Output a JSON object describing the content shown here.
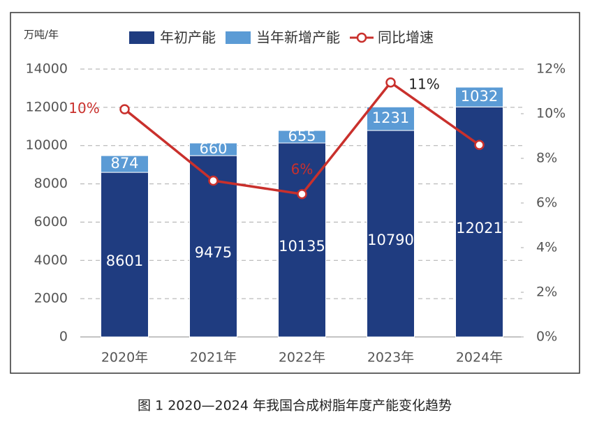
{
  "chart_data": {
    "type": "bar",
    "y_unit": "万吨/年",
    "caption": "图 1  2020—2024 年我国合成树脂年度产能变化趋势",
    "categories": [
      "2020年",
      "2021年",
      "2022年",
      "2023年",
      "2024年"
    ],
    "series": [
      {
        "name": "年初产能",
        "color": "#1f3c80",
        "values": [
          8601,
          9475,
          10135,
          10790,
          12021
        ]
      },
      {
        "name": "当年新增产能",
        "color": "#5b9bd5",
        "values": [
          874,
          660,
          655,
          1231,
          1032
        ]
      },
      {
        "name": "同比增速",
        "color": "#c9302c",
        "type": "line",
        "axis": "y2",
        "values": [
          10.2,
          7.0,
          6.4,
          11.4,
          8.6
        ],
        "value_labels": [
          "10%",
          null,
          "6%",
          "11%",
          null
        ]
      }
    ],
    "stacked": true,
    "ylim": [
      0,
      14000
    ],
    "yticks": [
      0,
      2000,
      4000,
      6000,
      8000,
      10000,
      12000,
      14000
    ],
    "y2lim": [
      0,
      12
    ],
    "y2ticks": [
      {
        "value": 0,
        "label": "0%"
      },
      {
        "value": 2,
        "label": "2%"
      },
      {
        "value": 4,
        "label": "4%"
      },
      {
        "value": 6,
        "label": "6%"
      },
      {
        "value": 8,
        "label": "8%"
      },
      {
        "value": 10,
        "label": "10%"
      },
      {
        "value": 12,
        "label": "12%"
      }
    ],
    "grid": true,
    "legend": "top"
  }
}
